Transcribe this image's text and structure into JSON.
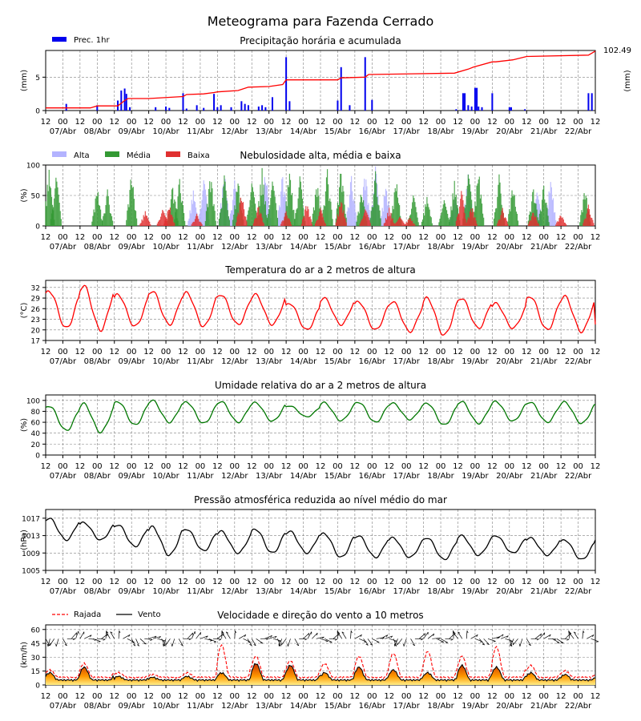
{
  "title": "Meteograma para Fazenda Cerrado",
  "x_axis": {
    "hour_ticks": [
      "12",
      "00",
      "12",
      "00",
      "12",
      "00",
      "12",
      "00",
      "12",
      "00",
      "12",
      "00",
      "12",
      "00",
      "12",
      "00",
      "12",
      "00",
      "12",
      "00",
      "12",
      "00",
      "12",
      "00",
      "12",
      "00",
      "12",
      "00",
      "12",
      "00",
      "12",
      "00",
      "12"
    ],
    "date_ticks": [
      "07/Abr",
      "08/Abr",
      "09/Abr",
      "10/Abr",
      "11/Abr",
      "12/Abr",
      "13/Abr",
      "14/Abr",
      "15/Abr",
      "16/Abr",
      "17/Abr",
      "18/Abr",
      "19/Abr",
      "20/Abr",
      "21/Abr",
      "22/Abr"
    ],
    "start": "2023-04-06 12:00",
    "end": "2023-04-22 12:00"
  },
  "colors": {
    "precip_bar": "#0000ee",
    "accum_line": "#ff0000",
    "cloud_high": "#b3b3ff",
    "cloud_mid": "#339933",
    "cloud_low": "#e03030",
    "temperature": "#ff0000",
    "humidity": "#007700",
    "pressure": "#000000",
    "gust": "#ff0000",
    "wind": "#000000",
    "grid": "#808080"
  },
  "chart_data": [
    {
      "type": "bar",
      "title": "Precipitação horária e acumulada",
      "ylabel": "(mm)",
      "ylabel_right": "(mm)",
      "ylim": [
        0,
        9
      ],
      "yticks": [
        "0",
        "5"
      ],
      "legend": [
        {
          "name": "Prec. 1hr"
        }
      ],
      "legend_position": "top-left",
      "accum_total_label": "102.49",
      "series": [
        {
          "name": "Prec. 1hr",
          "type": "bar",
          "x": [
            0.6,
            1.5,
            2.1,
            2.2,
            2.3,
            2.35,
            2.45,
            3.2,
            3.5,
            3.6,
            4.0,
            4.1,
            4.4,
            4.6,
            4.9,
            5.0,
            5.1,
            5.4,
            5.7,
            5.8,
            5.9,
            6.2,
            6.3,
            6.4,
            6.6,
            7.0,
            7.1,
            8.5,
            8.6,
            8.85,
            9.3,
            9.5,
            11.95,
            12.15,
            12.2,
            12.3,
            12.4,
            12.5,
            12.55,
            12.6,
            12.7,
            13.0,
            13.5,
            13.55,
            13.95,
            15.8,
            15.9
          ],
          "values": [
            1.0,
            0.8,
            1.5,
            3.0,
            3.3,
            2.5,
            0.5,
            0.5,
            0.6,
            0.4,
            2.6,
            0.3,
            0.8,
            0.4,
            2.5,
            0.5,
            0.8,
            0.5,
            1.4,
            1.0,
            0.8,
            0.6,
            0.8,
            0.5,
            2.0,
            8.0,
            1.4,
            1.5,
            6.5,
            0.8,
            8.0,
            1.6,
            0.2,
            2.6,
            2.6,
            0.8,
            0.6,
            3.4,
            3.4,
            0.6,
            0.5,
            2.6,
            0.5,
            0.5,
            0.2,
            2.6,
            2.6
          ]
        },
        {
          "name": "Acumulada",
          "type": "line",
          "y_axis": "right",
          "x": [
            0,
            1.3,
            1.5,
            2.1,
            2.3,
            2.4,
            3.0,
            4.0,
            4.1,
            4.6,
            4.9,
            5.0,
            5.6,
            5.9,
            6.5,
            6.9,
            7.0,
            8.5,
            8.6,
            9.3,
            9.4,
            11.9,
            12.3,
            12.45,
            13.0,
            13.1,
            13.6,
            14.0,
            15.8,
            16.0
          ],
          "values": [
            0.4,
            0.4,
            0.7,
            0.7,
            1.5,
            1.8,
            1.8,
            2.1,
            2.4,
            2.5,
            2.7,
            2.8,
            3.0,
            3.5,
            3.6,
            3.9,
            4.6,
            4.6,
            4.9,
            5.0,
            5.4,
            5.6,
            6.2,
            6.5,
            7.3,
            7.3,
            7.6,
            8.1,
            8.3,
            8.9
          ]
        }
      ]
    },
    {
      "type": "bar",
      "title": "Nebulosidade alta, média e baixa",
      "ylabel": "(%)",
      "ylim": [
        0,
        100
      ],
      "yticks": [
        "0",
        "50",
        "100"
      ],
      "legend": [
        {
          "name": "Alta"
        },
        {
          "name": "Média"
        },
        {
          "name": "Baixa"
        }
      ],
      "legend_position": "top-left",
      "series": [
        {
          "name": "Alta",
          "x": [
            4.3,
            4.6,
            5.2,
            5.5,
            6.4,
            6.9,
            8.9,
            9.3,
            9.6,
            9.9,
            11.9,
            12.3,
            14.3,
            14.7
          ],
          "values": [
            60,
            85,
            90,
            75,
            95,
            90,
            85,
            95,
            100,
            70,
            60,
            85,
            75,
            80
          ]
        },
        {
          "name": "Média",
          "x": [
            0.1,
            0.3,
            1.5,
            1.8,
            2.5,
            3.7,
            3.9,
            4.8,
            5.2,
            5.6,
            6.0,
            6.3,
            6.6,
            7.1,
            7.4,
            7.9,
            8.2,
            8.6,
            9.2,
            9.6,
            10.2,
            10.7,
            11.1,
            11.6,
            11.9,
            12.3,
            12.6,
            13.2,
            13.6,
            14.2,
            14.5,
            15.7
          ],
          "values": [
            95,
            90,
            65,
            60,
            90,
            70,
            80,
            90,
            85,
            80,
            90,
            95,
            100,
            95,
            85,
            75,
            95,
            100,
            60,
            90,
            80,
            55,
            50,
            65,
            75,
            100,
            95,
            85,
            70,
            65,
            70,
            65
          ]
        },
        {
          "name": "Baixa",
          "x": [
            2.9,
            3.4,
            3.6,
            4.4,
            5.7,
            6.2,
            7.0,
            7.6,
            8.0,
            8.6,
            9.3,
            10.0,
            10.3,
            10.6,
            12.1,
            12.4,
            13.3,
            14.2,
            15.0,
            15.8
          ],
          "values": [
            25,
            30,
            35,
            20,
            55,
            35,
            25,
            40,
            30,
            45,
            35,
            30,
            20,
            15,
            60,
            35,
            30,
            25,
            20,
            35
          ]
        }
      ]
    },
    {
      "type": "line",
      "title": "Temperatura do ar a 2 metros de altura",
      "ylabel": "(°C)",
      "ylim": [
        17,
        34
      ],
      "yticks": [
        "17",
        "20",
        "23",
        "26",
        "29",
        "32"
      ],
      "series": [
        {
          "name": "",
          "x": [
            0,
            1,
            2,
            3,
            4,
            5,
            6,
            7,
            8,
            9,
            10,
            11,
            12,
            13,
            14,
            15
          ],
          "max": [
            31,
            32.5,
            30,
            31,
            30.5,
            30,
            30,
            27.5,
            29,
            28,
            28,
            29,
            29,
            27.5,
            29.5,
            29.5
          ],
          "min": [
            20.5,
            20,
            21,
            21.5,
            21,
            21.5,
            21.5,
            20,
            21.5,
            20,
            19.5,
            18.5,
            20.5,
            20.5,
            20,
            19.5
          ],
          "end": 21.5
        }
      ]
    },
    {
      "type": "line",
      "title": "Umidade relativa do ar a 2 metros de altura",
      "ylabel": "(%)",
      "ylim": [
        0,
        110
      ],
      "yticks": [
        "0",
        "20",
        "40",
        "60",
        "80",
        "100"
      ],
      "series": [
        {
          "name": "",
          "x": [
            0,
            1,
            2,
            3,
            4,
            5,
            6,
            7,
            8,
            9,
            10,
            11,
            12,
            13,
            14,
            15
          ],
          "max": [
            90,
            94,
            98,
            100,
            97,
            98,
            96,
            90,
            96,
            97,
            95,
            95,
            98,
            98,
            97,
            97
          ],
          "min": [
            45,
            42,
            55,
            60,
            58,
            60,
            62,
            70,
            63,
            60,
            65,
            55,
            58,
            62,
            60,
            58
          ],
          "end": 93
        }
      ]
    },
    {
      "type": "line",
      "title": "Pressão atmosférica reduzida ao nível médio do mar",
      "ylabel": "(hPa)",
      "ylim": [
        1005,
        1019
      ],
      "yticks": [
        "1005",
        "1009",
        "1013",
        "1017"
      ],
      "series": [
        {
          "name": "",
          "x": [
            0,
            1,
            2,
            3,
            4,
            5,
            6,
            7,
            8,
            9,
            10,
            11,
            12,
            13,
            14,
            15
          ],
          "max": [
            1017,
            1016,
            1015.5,
            1015,
            1014.5,
            1014,
            1014.5,
            1014,
            1013.5,
            1013,
            1012.5,
            1012.5,
            1013,
            1013,
            1012.5,
            1012
          ],
          "min": [
            1012,
            1012,
            1010.5,
            1008.5,
            1009.5,
            1009,
            1009,
            1009,
            1008,
            1008,
            1008,
            1007.5,
            1008.5,
            1009,
            1008.5,
            1007.5
          ],
          "end": 1012
        }
      ]
    },
    {
      "type": "area",
      "title": "Velocidade e direção do vento a 10 metros",
      "ylabel": "(km/h)",
      "ylim": [
        0,
        65
      ],
      "yticks": [
        "0",
        "15",
        "30",
        "45",
        "60"
      ],
      "legend": [
        {
          "name": "Rajada"
        },
        {
          "name": "Vento"
        }
      ],
      "legend_position": "top-left",
      "series": [
        {
          "name": "Vento",
          "x": [
            0,
            1,
            2,
            3,
            4,
            5,
            6,
            7,
            8,
            9,
            10,
            11,
            12,
            13,
            14,
            15
          ],
          "peak": [
            12,
            18,
            8,
            7,
            8,
            12,
            22,
            20,
            12,
            18,
            15,
            12,
            20,
            18,
            12,
            10
          ]
        },
        {
          "name": "Rajada",
          "x": [
            0,
            1,
            2,
            3,
            4,
            5,
            6,
            7,
            8,
            9,
            10,
            11,
            12,
            13,
            14,
            15
          ],
          "peak": [
            15,
            22,
            12,
            10,
            12,
            42,
            30,
            25,
            22,
            30,
            33,
            35,
            30,
            40,
            20,
            14
          ]
        }
      ],
      "arrows_at": 50
    }
  ]
}
